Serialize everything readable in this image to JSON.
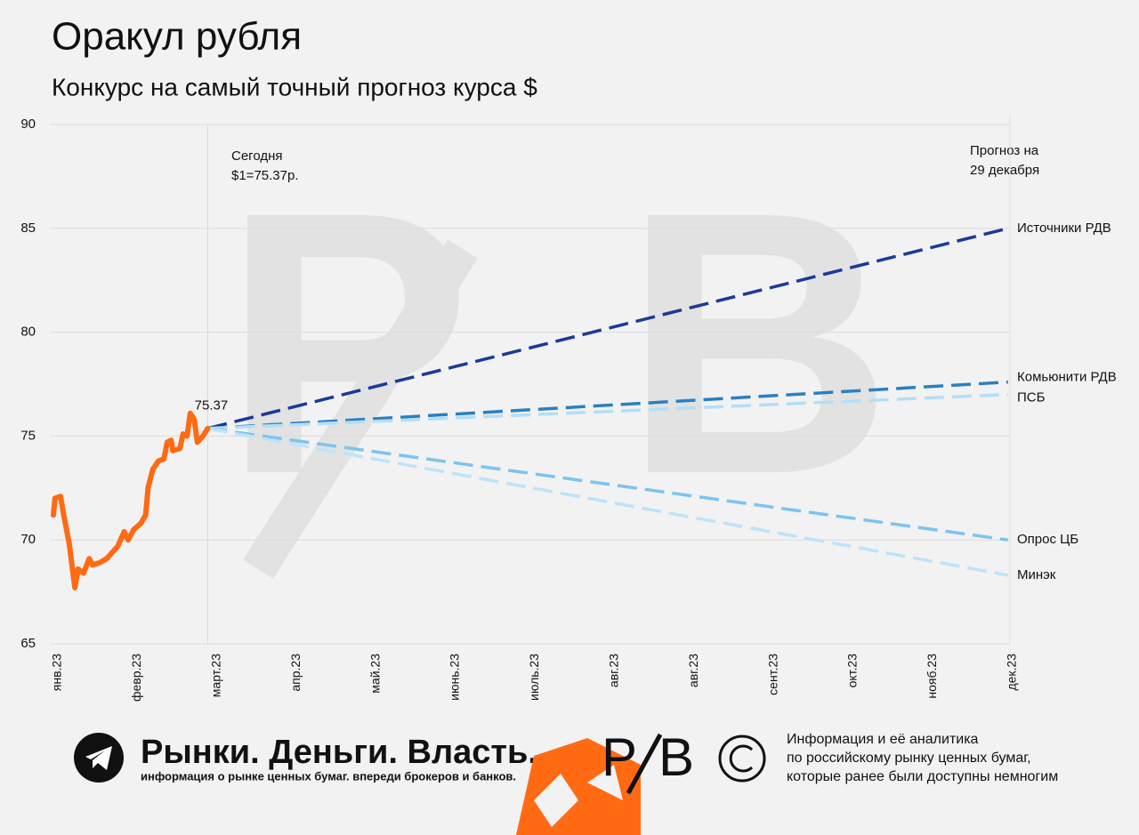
{
  "title": "Оракул рубля",
  "subtitle": "Конкурс на самый точный прогноз курса $",
  "chart_data": {
    "type": "line",
    "categories": [
      "янв.23",
      "февр.23",
      "март.23",
      "апр.23",
      "май.23",
      "июнь.23",
      "июль.23",
      "авг.23",
      "авг.23",
      "сент.23",
      "окт.23",
      "нояб.23",
      "дек.23"
    ],
    "ylim": [
      65,
      90
    ],
    "yticks": [
      65,
      70,
      75,
      80,
      85,
      90
    ],
    "grid": true,
    "annotations": {
      "today": "Сегодня",
      "rate": "$1=75.37р.",
      "forecast1": "Прогноз на",
      "forecast2": "29 декабря"
    },
    "series": [
      {
        "name": null,
        "color": "#ff6a13",
        "x": [
          0,
          0.02,
          0.09,
          0.13,
          0.2,
          0.27,
          0.31,
          0.38,
          0.45,
          0.49,
          0.58,
          0.67,
          0.74,
          0.81,
          0.89,
          0.94,
          1.01,
          1.1,
          1.16,
          1.19,
          1.25,
          1.32,
          1.39,
          1.43,
          1.48,
          1.5,
          1.59,
          1.63,
          1.68,
          1.72,
          1.77,
          1.81,
          1.88,
          1.94
        ],
        "values": [
          71.2,
          72.0,
          72.1,
          71.2,
          69.8,
          67.7,
          68.6,
          68.4,
          69.1,
          68.8,
          68.9,
          69.1,
          69.4,
          69.7,
          70.4,
          70.0,
          70.5,
          70.8,
          71.2,
          72.5,
          73.4,
          73.8,
          73.9,
          74.7,
          74.8,
          74.3,
          74.4,
          75.1,
          75.0,
          76.1,
          75.8,
          74.7,
          75.0,
          75.37
        ]
      },
      {
        "name": "Источники РДВ",
        "color": "#1a3a9a",
        "x": [
          1.94,
          12
        ],
        "values": [
          75.37,
          85.0
        ]
      },
      {
        "name": "Комьюнити РДВ",
        "color": "#2a80c2",
        "x": [
          1.94,
          12
        ],
        "values": [
          75.37,
          77.6
        ]
      },
      {
        "name": "ПСБ",
        "color": "#b3def6",
        "x": [
          1.94,
          12
        ],
        "values": [
          75.37,
          77.0
        ]
      },
      {
        "name": "Опрос ЦБ",
        "color": "#7cc3ef",
        "x": [
          1.94,
          12
        ],
        "values": [
          75.37,
          70.0
        ]
      },
      {
        "name": "Минэк",
        "color": "#bde3f8",
        "x": [
          1.94,
          12
        ],
        "values": [
          75.37,
          68.3
        ]
      }
    ]
  },
  "footer": {
    "brand": "Рынки. Деньги. Власть.",
    "tagline": "информация о рынке ценных бумаг. впереди брокеров и банков.",
    "info": [
      "Информация и её аналитика",
      "по российскому рынку ценных бумаг,",
      "которые ранее были доступны немногим"
    ]
  }
}
